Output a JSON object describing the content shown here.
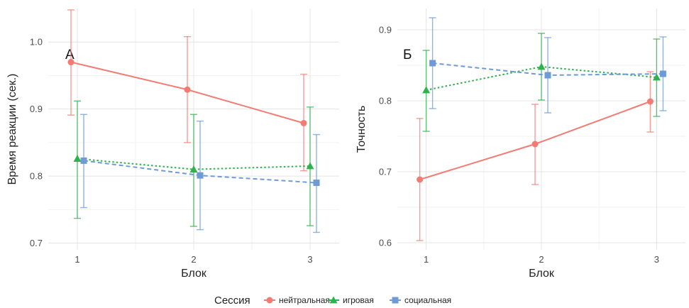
{
  "chart_data": [
    {
      "type": "line",
      "panel_label": "А",
      "xlabel": "Блок",
      "ylabel": "Время реакции (сек.)",
      "x": [
        1,
        2,
        3
      ],
      "x_tick_labels": [
        "1",
        "2",
        "3"
      ],
      "ylim": [
        0.69,
        1.05
      ],
      "y_ticks": [
        0.7,
        0.8,
        0.9,
        1.0
      ],
      "y_tick_labels": [
        "0.7",
        "0.8",
        "0.9",
        "1.0"
      ],
      "grid": true,
      "series": [
        {
          "key": "neutral",
          "name": "нейтральная",
          "marker": "circle",
          "dash": "solid",
          "values": [
            0.97,
            0.929,
            0.879
          ],
          "lower": [
            0.891,
            0.85,
            0.808
          ],
          "upper": [
            1.048,
            1.008,
            0.952
          ]
        },
        {
          "key": "game",
          "name": "игровая",
          "marker": "triangle",
          "dash": "dotted",
          "values": [
            0.826,
            0.81,
            0.815
          ],
          "lower": [
            0.737,
            0.725,
            0.726
          ],
          "upper": [
            0.912,
            0.892,
            0.903
          ]
        },
        {
          "key": "social",
          "name": "социальная",
          "marker": "square",
          "dash": "dashed",
          "values": [
            0.823,
            0.801,
            0.79
          ],
          "lower": [
            0.753,
            0.72,
            0.716
          ],
          "upper": [
            0.892,
            0.882,
            0.862
          ]
        }
      ]
    },
    {
      "type": "line",
      "panel_label": "Б",
      "xlabel": "Блок",
      "ylabel": "Точность",
      "x": [
        1,
        2,
        3
      ],
      "x_tick_labels": [
        "1",
        "2",
        "3"
      ],
      "ylim": [
        0.59,
        0.93
      ],
      "y_ticks": [
        0.6,
        0.7,
        0.8,
        0.9
      ],
      "y_tick_labels": [
        "0.6",
        "0.7",
        "0.8",
        "0.9"
      ],
      "grid": true,
      "series": [
        {
          "key": "neutral",
          "name": "нейтральная",
          "marker": "circle",
          "dash": "solid",
          "values": [
            0.689,
            0.739,
            0.799
          ],
          "lower": [
            0.603,
            0.682,
            0.756
          ],
          "upper": [
            0.775,
            0.795,
            0.841
          ]
        },
        {
          "key": "game",
          "name": "игровая",
          "marker": "triangle",
          "dash": "dotted",
          "values": [
            0.815,
            0.848,
            0.833
          ],
          "lower": [
            0.757,
            0.801,
            0.778
          ],
          "upper": [
            0.871,
            0.895,
            0.887
          ]
        },
        {
          "key": "social",
          "name": "социальная",
          "marker": "square",
          "dash": "dashed",
          "values": [
            0.853,
            0.836,
            0.838
          ],
          "lower": [
            0.789,
            0.783,
            0.786
          ],
          "upper": [
            0.917,
            0.889,
            0.89
          ]
        }
      ]
    }
  ],
  "legend": {
    "title": "Сессия",
    "position": "bottom",
    "items": [
      {
        "key": "neutral",
        "label": "нейтральная",
        "marker": "circle"
      },
      {
        "key": "game",
        "label": "игровая",
        "marker": "triangle"
      },
      {
        "key": "social",
        "label": "социальная",
        "marker": "square"
      }
    ]
  },
  "colors": {
    "neutral": "#F27C73",
    "game": "#2EB24C",
    "social": "#6E9BD6"
  }
}
